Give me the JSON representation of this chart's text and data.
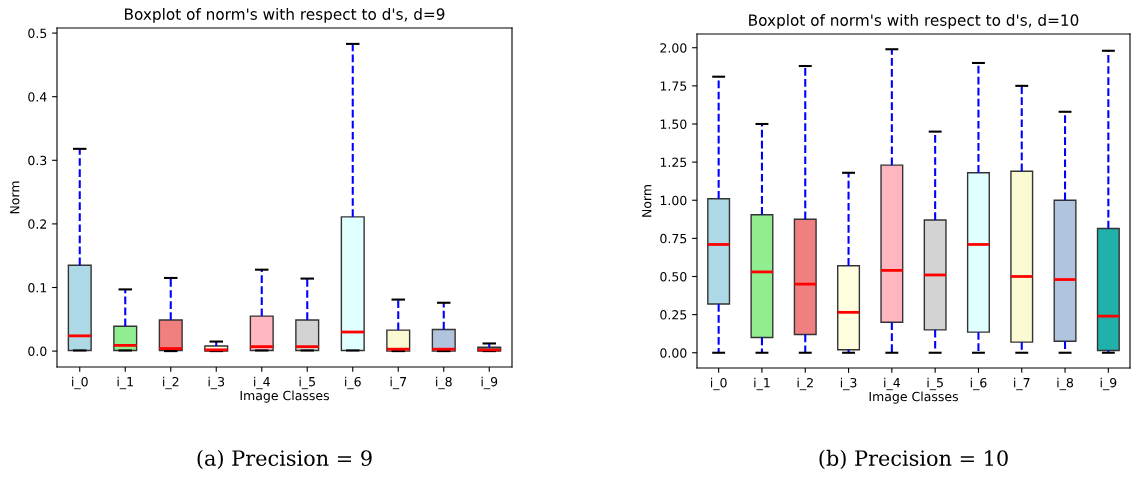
{
  "chart_data": [
    {
      "type": "box",
      "title": "Boxplot of norm's with respect to d's, d=9",
      "xlabel": "Image Classes",
      "ylabel": "Norm",
      "categories": [
        "i_0",
        "i_1",
        "i_2",
        "i_3",
        "i_4",
        "i_5",
        "i_6",
        "i_7",
        "i_8",
        "i_9"
      ],
      "colors": [
        "#add8e6",
        "#90ee90",
        "#f08080",
        "#ffffe0",
        "#ffb6c1",
        "#d3d3d3",
        "#e0ffff",
        "#fafad2",
        "#b0c4de",
        "#20b2aa"
      ],
      "boxes": [
        {
          "low": 0.001,
          "q1": 0.001,
          "median": 0.024,
          "q3": 0.135,
          "high": 0.318
        },
        {
          "low": 0.001,
          "q1": 0.001,
          "median": 0.009,
          "q3": 0.039,
          "high": 0.097
        },
        {
          "low": 0.0,
          "q1": 0.001,
          "median": 0.004,
          "q3": 0.049,
          "high": 0.115
        },
        {
          "low": 0.0,
          "q1": 0.0,
          "median": 0.002,
          "q3": 0.008,
          "high": 0.015
        },
        {
          "low": 0.001,
          "q1": 0.001,
          "median": 0.007,
          "q3": 0.055,
          "high": 0.128
        },
        {
          "low": 0.001,
          "q1": 0.001,
          "median": 0.007,
          "q3": 0.049,
          "high": 0.114
        },
        {
          "low": 0.001,
          "q1": 0.001,
          "median": 0.03,
          "q3": 0.211,
          "high": 0.483
        },
        {
          "low": 0.0,
          "q1": 0.0,
          "median": 0.003,
          "q3": 0.033,
          "high": 0.081
        },
        {
          "low": 0.0,
          "q1": 0.0,
          "median": 0.003,
          "q3": 0.034,
          "high": 0.076
        },
        {
          "low": 0.0,
          "q1": 0.0,
          "median": 0.002,
          "q3": 0.006,
          "high": 0.012
        }
      ],
      "ylim": [
        -0.025,
        0.508
      ],
      "yticks": [
        {
          "value": 0,
          "label": "0.0"
        },
        0.1,
        0.2,
        0.3,
        0.4,
        0.5
      ],
      "line_style": "dashed",
      "grid": false,
      "annotations": [
        "(a) Precision = 9"
      ]
    },
    {
      "type": "box",
      "title": "Boxplot of norm's with respect to d's, d=10",
      "xlabel": "Image Classes",
      "ylabel": "Norm",
      "categories": [
        "i_0",
        "i_1",
        "i_2",
        "i_3",
        "i_4",
        "i_5",
        "i_6",
        "i_7",
        "i_8",
        "i_9"
      ],
      "colors": [
        "#add8e6",
        "#90ee90",
        "#f08080",
        "#ffffe0",
        "#ffb6c1",
        "#d3d3d3",
        "#e0ffff",
        "#fafad2",
        "#b0c4de",
        "#20b2aa"
      ],
      "boxes": [
        {
          "low": 0.0,
          "q1": 0.32,
          "median": 0.71,
          "q3": 1.01,
          "high": 1.81
        },
        {
          "low": 0.0,
          "q1": 0.1,
          "median": 0.53,
          "q3": 0.905,
          "high": 1.5
        },
        {
          "low": 0.0,
          "q1": 0.12,
          "median": 0.45,
          "q3": 0.875,
          "high": 1.88
        },
        {
          "low": 0.0,
          "q1": 0.02,
          "median": 0.265,
          "q3": 0.57,
          "high": 1.18
        },
        {
          "low": 0.0,
          "q1": 0.2,
          "median": 0.54,
          "q3": 1.23,
          "high": 1.99
        },
        {
          "low": 0.0,
          "q1": 0.15,
          "median": 0.51,
          "q3": 0.87,
          "high": 1.45
        },
        {
          "low": 0.0,
          "q1": 0.135,
          "median": 0.71,
          "q3": 1.18,
          "high": 1.9
        },
        {
          "low": 0.0,
          "q1": 0.07,
          "median": 0.5,
          "q3": 1.19,
          "high": 1.75
        },
        {
          "low": 0.0,
          "q1": 0.075,
          "median": 0.48,
          "q3": 1.0,
          "high": 1.58
        },
        {
          "low": 0.0,
          "q1": 0.015,
          "median": 0.24,
          "q3": 0.815,
          "high": 1.98
        }
      ],
      "ylim": [
        -0.1,
        2.09
      ],
      "yticks": [
        {
          "value": 0,
          "label": "0.00"
        },
        {
          "value": 0.25,
          "label": "0.25"
        },
        {
          "value": 0.5,
          "label": "0.50"
        },
        {
          "value": 0.75,
          "label": "0.75"
        },
        {
          "value": 1,
          "label": "1.00"
        },
        {
          "value": 1.25,
          "label": "1.25"
        },
        {
          "value": 1.5,
          "label": "1.50"
        },
        {
          "value": 1.75,
          "label": "1.75"
        },
        {
          "value": 2,
          "label": "2.00"
        }
      ],
      "line_style": "dashed",
      "grid": false,
      "annotations": [
        "(b) Precision = 10"
      ]
    }
  ]
}
